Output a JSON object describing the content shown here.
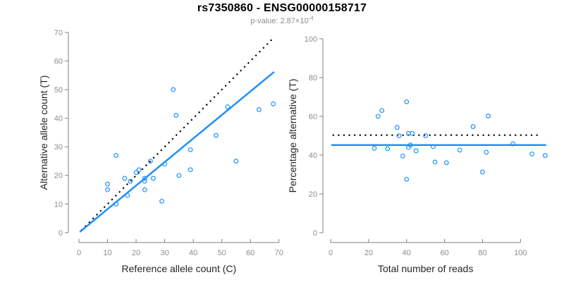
{
  "header": {
    "title": "rs7350860 - ENSG00000158717",
    "subtitle_base": "p-value: 2.87×10",
    "subtitle_exponent": "-4"
  },
  "colors": {
    "accent_blue": "#1E90FF",
    "reference_line_black": "#000000",
    "tick_gray": "#8c8c8c",
    "axis_line_gray": "#808080",
    "axis_label_dark": "#262626",
    "subtitle_gray": "#8e8e8e"
  },
  "chart_data": [
    {
      "type": "scatter",
      "name": "allele-count-scatter",
      "xlabel": "Reference allele count (C)",
      "ylabel": "Alternative allele count (T)",
      "xlim": [
        0,
        70
      ],
      "ylim": [
        0,
        70
      ],
      "xticks": [
        0,
        10,
        20,
        30,
        40,
        50,
        60,
        70
      ],
      "yticks": [
        0,
        10,
        20,
        30,
        40,
        50,
        60,
        70
      ],
      "grid": false,
      "legend": "none",
      "points": [
        [
          10,
          15
        ],
        [
          10,
          17
        ],
        [
          13,
          10
        ],
        [
          13,
          27
        ],
        [
          16,
          19
        ],
        [
          17,
          13
        ],
        [
          18,
          18
        ],
        [
          20,
          21
        ],
        [
          21,
          22
        ],
        [
          23,
          15
        ],
        [
          23,
          18
        ],
        [
          23,
          19
        ],
        [
          25,
          25
        ],
        [
          26,
          19
        ],
        [
          29,
          11
        ],
        [
          30,
          24
        ],
        [
          33,
          50
        ],
        [
          34,
          41
        ],
        [
          35,
          20
        ],
        [
          39,
          22
        ],
        [
          39,
          29
        ],
        [
          48,
          34
        ],
        [
          52,
          44
        ],
        [
          55,
          25
        ],
        [
          63,
          43
        ],
        [
          68,
          45
        ]
      ],
      "lines": [
        {
          "style": "dotted",
          "meaning": "identity y = x",
          "x1": 0.8,
          "y1": 0.8,
          "x2": 67.8,
          "y2": 67.8
        },
        {
          "style": "solid",
          "meaning": "fitted allelic ratio, slope 0.823",
          "x1": 0.3,
          "y1": 0.25,
          "x2": 68.3,
          "y2": 56.2
        }
      ]
    },
    {
      "type": "scatter",
      "name": "percentage-alternative-scatter",
      "xlabel": "Total number of reads",
      "ylabel": "Percentage alternative (T)",
      "xlim": [
        0,
        115
      ],
      "ylim": [
        0,
        100
      ],
      "xticks": [
        0,
        20,
        40,
        60,
        80,
        100
      ],
      "yticks": [
        0,
        20,
        40,
        60,
        80,
        100
      ],
      "grid": false,
      "legend": "none",
      "points": [
        [
          25,
          60
        ],
        [
          27,
          63
        ],
        [
          23,
          43.5
        ],
        [
          40,
          67.5
        ],
        [
          35,
          54.3
        ],
        [
          30,
          43.3
        ],
        [
          36,
          50
        ],
        [
          41,
          51.2
        ],
        [
          43,
          51.2
        ],
        [
          38,
          39.5
        ],
        [
          41,
          43.9
        ],
        [
          42,
          45.2
        ],
        [
          50,
          50
        ],
        [
          45,
          42.2
        ],
        [
          40,
          27.5
        ],
        [
          54,
          44.4
        ],
        [
          83,
          60.2
        ],
        [
          75,
          54.7
        ],
        [
          55,
          36.4
        ],
        [
          61,
          36.1
        ],
        [
          68,
          42.6
        ],
        [
          82,
          41.5
        ],
        [
          96,
          45.8
        ],
        [
          80,
          31.3
        ],
        [
          106,
          40.6
        ],
        [
          113,
          39.8
        ]
      ],
      "lines": [
        {
          "style": "dotted",
          "meaning": "expected percentage 50%",
          "x1": 1,
          "y1": 50.3,
          "x2": 110.5,
          "y2": 50.3
        },
        {
          "style": "solid",
          "meaning": "observed mean percentage 45.2%",
          "x1": 0.3,
          "y1": 45.2,
          "x2": 113.5,
          "y2": 45.2
        }
      ]
    }
  ]
}
